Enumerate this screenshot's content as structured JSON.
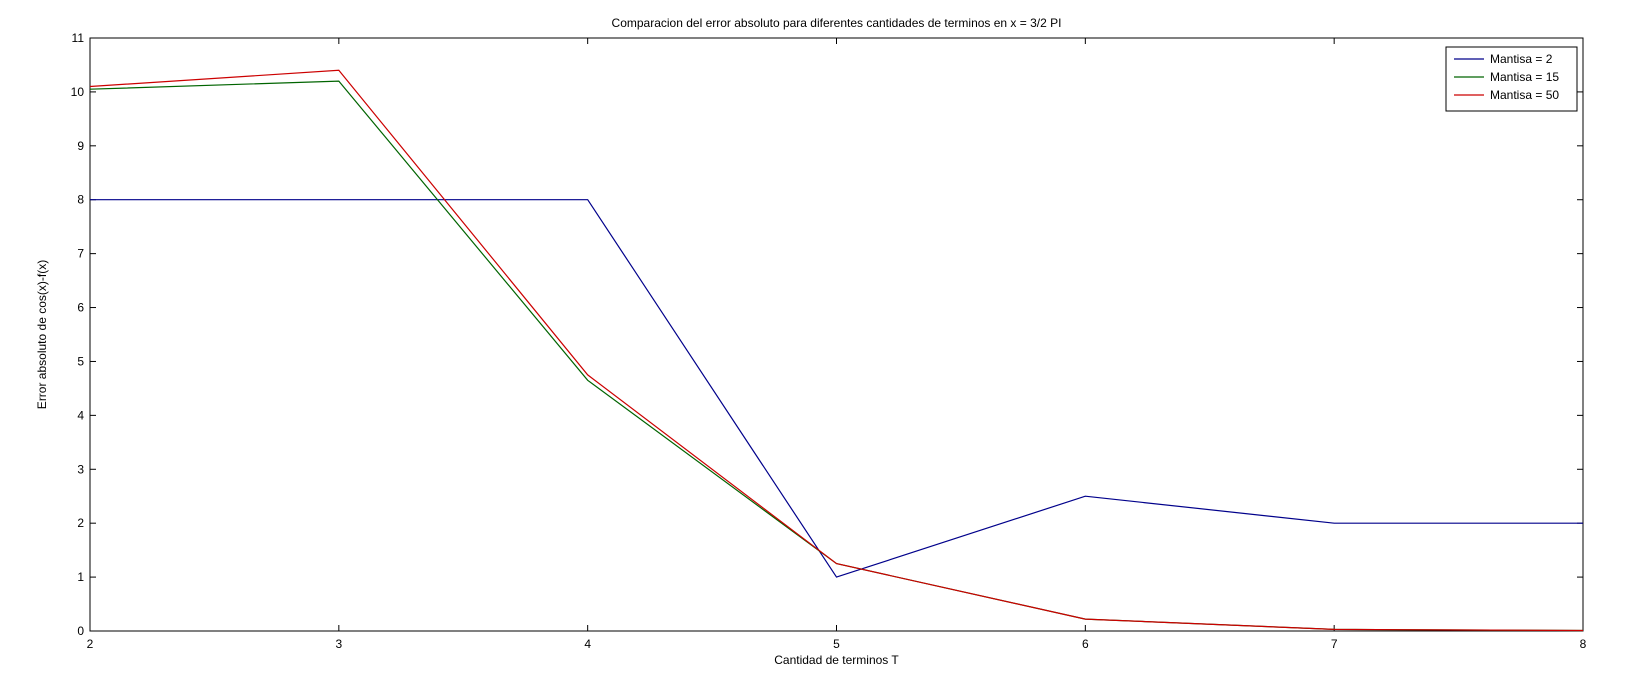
{
  "chart_data": {
    "type": "line",
    "title": "Comparacion del error absoluto para diferentes cantidades de terminos en x = 3/2 PI",
    "xlabel": "Cantidad de terminos T",
    "ylabel": "Error absoluto de cos(x)-f(x)",
    "xlim": [
      2,
      8
    ],
    "ylim": [
      0,
      11
    ],
    "xticks": [
      2,
      3,
      4,
      5,
      6,
      7,
      8
    ],
    "yticks": [
      0,
      1,
      2,
      3,
      4,
      5,
      6,
      7,
      8,
      9,
      10,
      11
    ],
    "grid": false,
    "legend_position": "top-right",
    "x": [
      2,
      3,
      4,
      5,
      6,
      7,
      8
    ],
    "series": [
      {
        "name": "Mantisa = 2",
        "color": "#00008b",
        "values": [
          8,
          8,
          8,
          1,
          2.5,
          2,
          2
        ]
      },
      {
        "name": "Mantisa = 15",
        "color": "#006400",
        "values": [
          10.05,
          10.2,
          4.65,
          1.25,
          0.22,
          0.03,
          0.01
        ]
      },
      {
        "name": "Mantisa = 50",
        "color": "#cc0000",
        "values": [
          10.1,
          10.4,
          4.75,
          1.25,
          0.22,
          0.03,
          0.01
        ]
      }
    ]
  }
}
